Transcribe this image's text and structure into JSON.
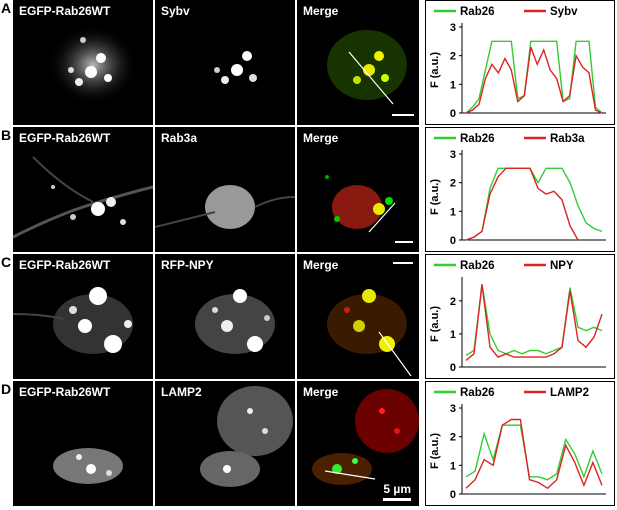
{
  "rows": [
    {
      "letter": "A",
      "labels": [
        "EGFP-Rab26WT",
        "Sybv",
        "Merge"
      ],
      "legend": [
        "Rab26",
        "Sybv"
      ],
      "yticks": [
        "0",
        "1",
        "2",
        "3"
      ],
      "ylabel": "F (a.u.)",
      "chart_data": {
        "type": "line",
        "ylim": [
          0,
          3
        ],
        "ylabel": "F (a.u.)",
        "series": [
          {
            "name": "Rab26",
            "color": "#33cc33",
            "values": [
              0,
              0.2,
              0.5,
              1.5,
              2.5,
              2.5,
              2.5,
              2.5,
              0.5,
              0.6,
              2.5,
              2.5,
              2.5,
              2.5,
              2.5,
              0.4,
              0.5,
              2.5,
              2.5,
              2.5,
              0.2,
              0
            ]
          },
          {
            "name": "Sybv",
            "color": "#dd2222",
            "values": [
              0,
              0.1,
              0.3,
              1.2,
              1.7,
              1.4,
              1.9,
              1.5,
              0.4,
              0.6,
              2.3,
              1.7,
              2.2,
              1.5,
              1.2,
              0.4,
              0.6,
              2.0,
              1.6,
              1.4,
              0.1,
              0
            ]
          }
        ]
      }
    },
    {
      "letter": "B",
      "labels": [
        "EGFP-Rab26WT",
        "Rab3a",
        "Merge"
      ],
      "legend": [
        "Rab26",
        "Rab3a"
      ],
      "yticks": [
        "0",
        "1",
        "2",
        "3"
      ],
      "ylabel": "F (a.u.)",
      "chart_data": {
        "type": "line",
        "ylim": [
          0,
          3
        ],
        "ylabel": "F (a.u.)",
        "series": [
          {
            "name": "Rab26",
            "color": "#33cc33",
            "values": [
              0,
              0.1,
              0.3,
              1.8,
              2.5,
              2.5,
              2.5,
              2.5,
              2.5,
              2.0,
              2.5,
              2.5,
              2.5,
              2.0,
              1.2,
              0.6,
              0.4,
              0.3
            ]
          },
          {
            "name": "Rab3a",
            "color": "#dd2222",
            "values": [
              0,
              0.1,
              0.3,
              1.6,
              2.2,
              2.5,
              2.5,
              2.5,
              2.5,
              1.8,
              1.6,
              1.7,
              1.4,
              0.5,
              0,
              null,
              null,
              null
            ]
          }
        ]
      }
    },
    {
      "letter": "C",
      "labels": [
        "EGFP-Rab26WT",
        "RFP-NPY",
        "Merge"
      ],
      "legend": [
        "Rab26",
        "NPY"
      ],
      "yticks": [
        "0",
        "1",
        "2"
      ],
      "ylabel": "F (a.u.)",
      "chart_data": {
        "type": "line",
        "ylim": [
          0,
          2.6
        ],
        "ylabel": "F (a.u.)",
        "series": [
          {
            "name": "Rab26",
            "color": "#33cc33",
            "values": [
              0.35,
              0.5,
              2.5,
              1.0,
              0.5,
              0.4,
              0.5,
              0.4,
              0.5,
              0.5,
              0.4,
              0.5,
              0.6,
              2.4,
              1.2,
              1.1,
              1.2,
              1.1
            ]
          },
          {
            "name": "NPY",
            "color": "#dd2222",
            "values": [
              0.2,
              0.4,
              2.5,
              0.6,
              0.3,
              0.4,
              0.3,
              0.3,
              0.3,
              0.3,
              0.3,
              0.4,
              0.6,
              2.3,
              0.8,
              0.6,
              0.9,
              1.6
            ]
          }
        ]
      }
    },
    {
      "letter": "D",
      "labels": [
        "EGFP-Rab26WT",
        "LAMP2",
        "Merge"
      ],
      "legend": [
        "Rab26",
        "LAMP2"
      ],
      "yticks": [
        "0",
        "1",
        "2",
        "3"
      ],
      "ylabel": "F (a.u.)",
      "chart_data": {
        "type": "line",
        "ylim": [
          0,
          3
        ],
        "ylabel": "F (a.u.)",
        "series": [
          {
            "name": "Rab26",
            "color": "#33cc33",
            "values": [
              0.6,
              0.8,
              2.1,
              1.2,
              2.4,
              2.4,
              2.4,
              0.6,
              0.6,
              0.5,
              0.7,
              1.9,
              1.4,
              0.6,
              1.5,
              0.7
            ]
          },
          {
            "name": "LAMP2",
            "color": "#dd2222",
            "values": [
              0.2,
              0.5,
              1.2,
              1.0,
              2.4,
              2.6,
              2.6,
              0.5,
              0.4,
              0.2,
              0.5,
              1.7,
              1.1,
              0.3,
              1.1,
              0.3
            ]
          }
        ]
      }
    }
  ],
  "scalebar_label": "5 µm"
}
